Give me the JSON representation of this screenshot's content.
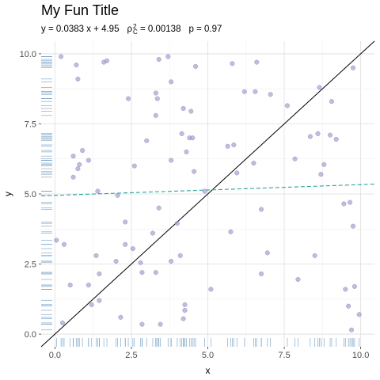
{
  "chart_data": {
    "type": "scatter",
    "title": "My Fun Title",
    "subtitle": {
      "equation": "y = 0.0383 x + 4.95",
      "rho_symbol": "ρ",
      "rho_sup": "2",
      "rho_sub": "C",
      "rho_value": " = 0.00138",
      "p_text": "p = 0.97"
    },
    "xlabel": "x",
    "ylabel": "y",
    "xlim": [
      -0.45,
      10.45
    ],
    "ylim": [
      -0.45,
      10.45
    ],
    "x_ticks": [
      0,
      2.5,
      5,
      7.5,
      10
    ],
    "x_tick_labels": [
      "0.0",
      "2.5",
      "5.0",
      "7.5",
      "10.0"
    ],
    "y_ticks": [
      0,
      2.5,
      5,
      7.5,
      10
    ],
    "y_tick_labels": [
      "0.0",
      "2.5",
      "5.0",
      "7.5",
      "10.0"
    ],
    "grid": true,
    "rug": true,
    "identity_line": {
      "slope": 1,
      "intercept": 0,
      "color": "#000000"
    },
    "fit_line": {
      "slope": 0.0383,
      "intercept": 4.95,
      "color": "#26a69a",
      "dashed": true
    },
    "point_color": "#9b99cc",
    "rug_color": "#5b8db8",
    "points": [
      [
        0.2,
        9.9
      ],
      [
        0.7,
        9.6
      ],
      [
        0.75,
        9.1
      ],
      [
        1.6,
        9.7
      ],
      [
        1.7,
        9.75
      ],
      [
        3.4,
        9.8
      ],
      [
        3.7,
        9.9
      ],
      [
        3.8,
        9.0
      ],
      [
        4.6,
        9.55
      ],
      [
        5.8,
        9.65
      ],
      [
        6.6,
        9.7
      ],
      [
        6.2,
        8.65
      ],
      [
        6.55,
        8.65
      ],
      [
        7.05,
        8.55
      ],
      [
        7.6,
        8.15
      ],
      [
        8.65,
        8.8
      ],
      [
        9.05,
        8.3
      ],
      [
        9.75,
        9.5
      ],
      [
        2.4,
        8.4
      ],
      [
        3.3,
        8.6
      ],
      [
        3.35,
        8.4
      ],
      [
        3.3,
        7.8
      ],
      [
        4.2,
        8.05
      ],
      [
        4.45,
        7.95
      ],
      [
        4.15,
        7.15
      ],
      [
        4.4,
        7.0
      ],
      [
        4.5,
        7.0
      ],
      [
        4.3,
        6.5
      ],
      [
        3.0,
        6.9
      ],
      [
        3.8,
        6.2
      ],
      [
        5.65,
        6.7
      ],
      [
        5.85,
        6.75
      ],
      [
        8.35,
        7.05
      ],
      [
        8.6,
        7.15
      ],
      [
        9.0,
        7.1
      ],
      [
        9.2,
        6.95
      ],
      [
        7.85,
        6.25
      ],
      [
        8.8,
        6.05
      ],
      [
        8.7,
        5.7
      ],
      [
        6.5,
        6.1
      ],
      [
        5.95,
        5.75
      ],
      [
        0.6,
        6.35
      ],
      [
        0.9,
        6.55
      ],
      [
        1.1,
        6.2
      ],
      [
        0.8,
        6.05
      ],
      [
        0.75,
        5.9
      ],
      [
        0.6,
        5.6
      ],
      [
        4.55,
        5.8
      ],
      [
        2.6,
        6.0
      ],
      [
        1.4,
        5.1
      ],
      [
        2.05,
        4.95
      ],
      [
        4.9,
        5.1
      ],
      [
        9.45,
        4.65
      ],
      [
        9.65,
        4.7
      ],
      [
        6.75,
        4.45
      ],
      [
        3.4,
        4.5
      ],
      [
        2.3,
        4.0
      ],
      [
        4.0,
        3.95
      ],
      [
        9.75,
        3.85
      ],
      [
        5.75,
        3.65
      ],
      [
        0.05,
        3.35
      ],
      [
        0.3,
        3.2
      ],
      [
        2.3,
        3.2
      ],
      [
        2.55,
        3.05
      ],
      [
        3.2,
        3.6
      ],
      [
        1.35,
        2.8
      ],
      [
        2.0,
        2.6
      ],
      [
        2.8,
        2.55
      ],
      [
        2.85,
        2.2
      ],
      [
        3.3,
        2.2
      ],
      [
        3.8,
        2.6
      ],
      [
        4.1,
        2.8
      ],
      [
        6.95,
        2.9
      ],
      [
        8.5,
        2.8
      ],
      [
        7.95,
        1.95
      ],
      [
        6.75,
        2.15
      ],
      [
        0.5,
        1.75
      ],
      [
        1.1,
        1.75
      ],
      [
        1.45,
        2.15
      ],
      [
        5.1,
        1.6
      ],
      [
        9.5,
        1.6
      ],
      [
        9.8,
        1.7
      ],
      [
        1.2,
        1.05
      ],
      [
        1.45,
        1.2
      ],
      [
        4.25,
        1.05
      ],
      [
        9.6,
        1.0
      ],
      [
        9.95,
        0.7
      ],
      [
        0.25,
        0.4
      ],
      [
        2.15,
        0.6
      ],
      [
        4.25,
        0.85
      ],
      [
        4.2,
        0.55
      ],
      [
        2.85,
        0.35
      ],
      [
        3.45,
        0.35
      ],
      [
        9.7,
        0.15
      ]
    ]
  }
}
